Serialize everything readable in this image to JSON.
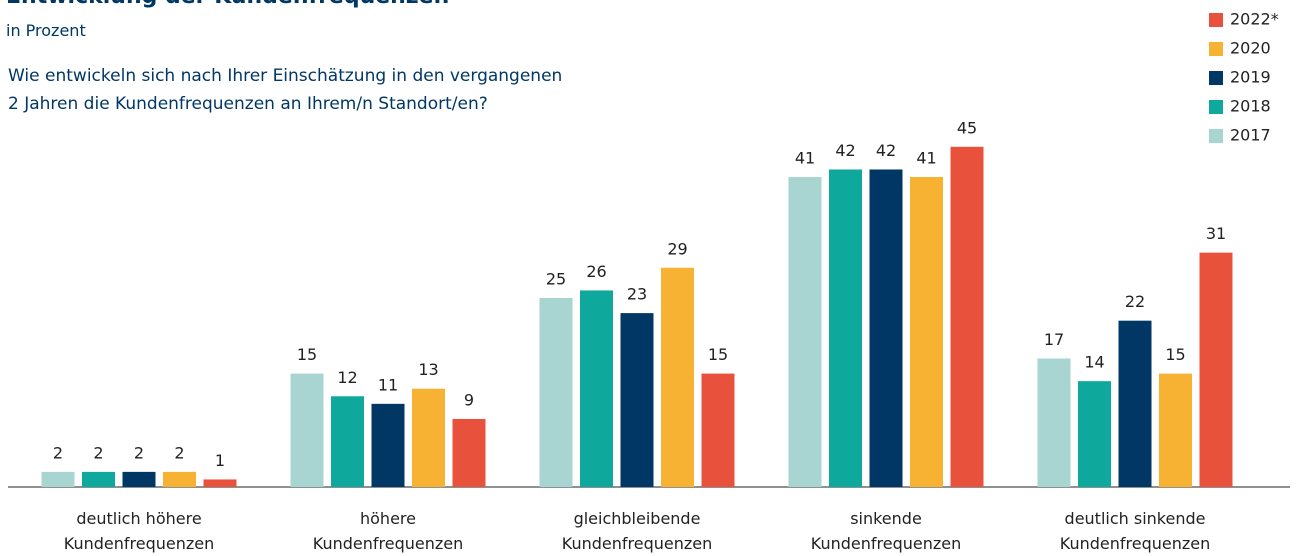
{
  "chart_data": {
    "type": "bar",
    "title": "Entwicklung der Kundenfrequenzen",
    "subtitle": "in Prozent",
    "annotation": "Wie entwickeln sich nach Ihrer Einschätzung in den vergangenen\n2 Jahren die Kundenfrequenzen an Ihrem/n Standort/en?",
    "categories": [
      "deutlich höhere\nKundenfrequenzen",
      "höhere\nKundenfrequenzen",
      "gleichbleibende\nKundenfrequenzen",
      "sinkende\nKundenfrequenzen",
      "deutlich sinkende\nKundenfrequenzen"
    ],
    "series": [
      {
        "name": "2017",
        "color": "#a8d5d1",
        "values": [
          2,
          15,
          25,
          41,
          17
        ]
      },
      {
        "name": "2018",
        "color": "#0fa89c",
        "values": [
          2,
          12,
          26,
          42,
          14
        ]
      },
      {
        "name": "2019",
        "color": "#003764",
        "values": [
          2,
          11,
          23,
          42,
          22
        ]
      },
      {
        "name": "2020",
        "color": "#f7b233",
        "values": [
          2,
          13,
          29,
          41,
          15
        ]
      },
      {
        "name": "2022*",
        "color": "#e8523c",
        "values": [
          1,
          9,
          15,
          45,
          31
        ]
      }
    ],
    "legend": "top-right"
  }
}
